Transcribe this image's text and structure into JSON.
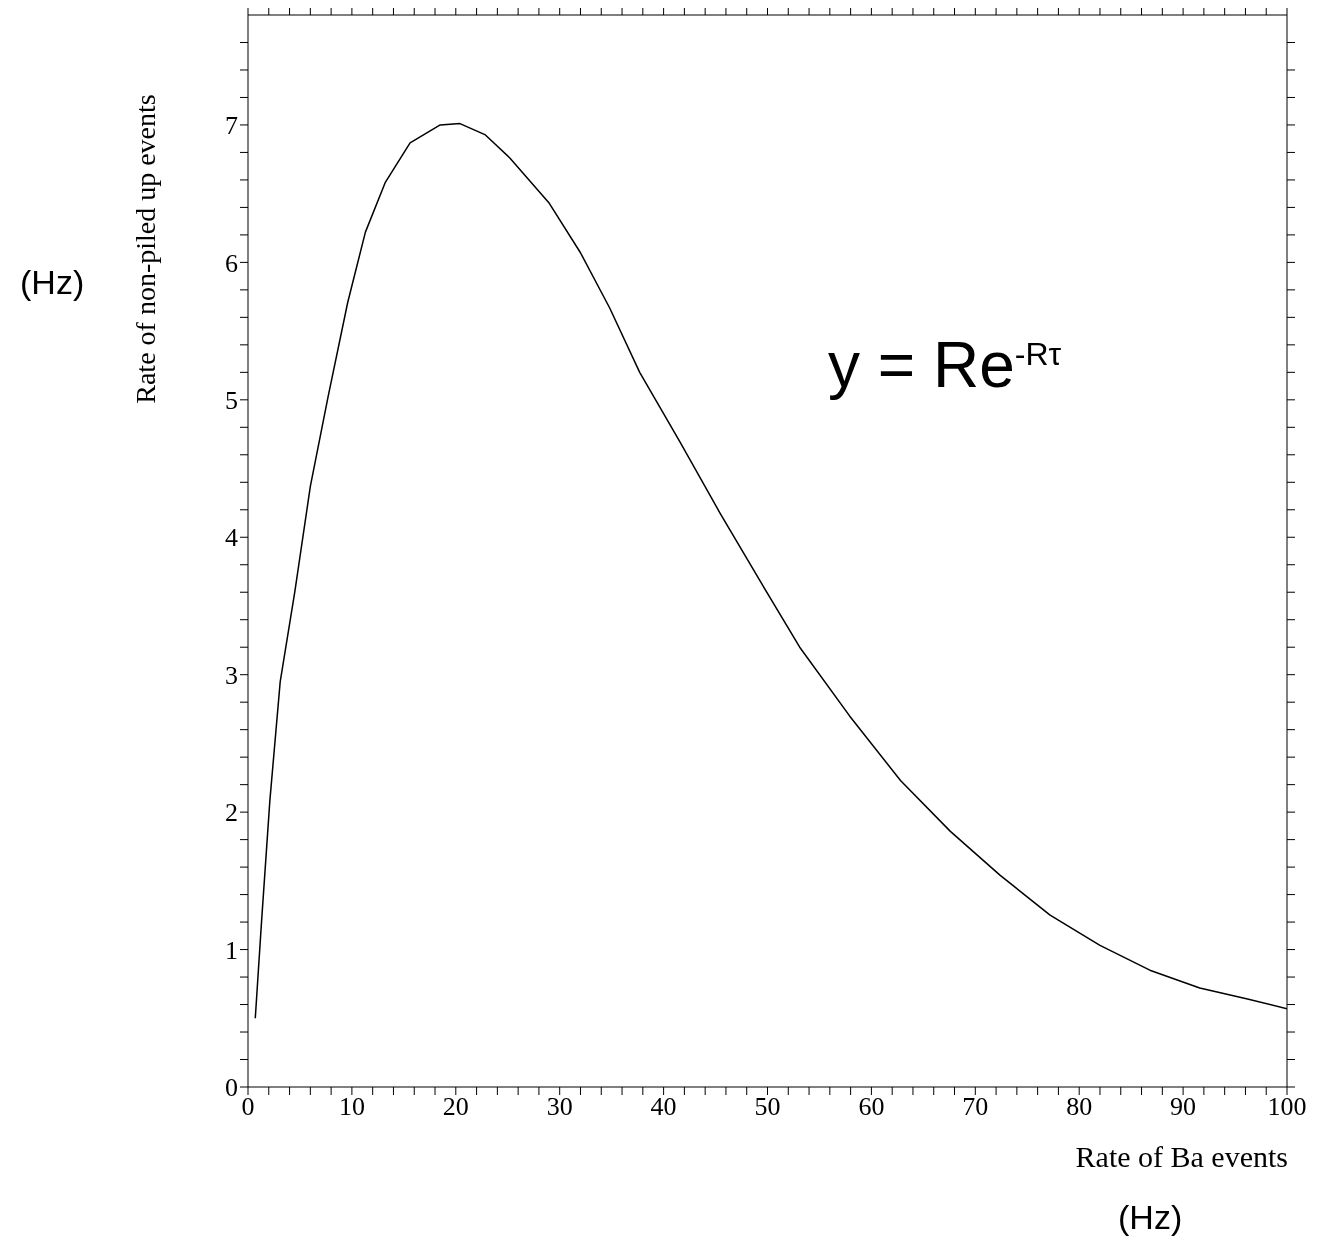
{
  "chart_data": {
    "type": "line",
    "xlabel": "Rate of Ba events",
    "ylabel": "Rate of non-piled up events",
    "annotations": [
      "(Hz)",
      "(Hz)",
      "y = Re$^{-Rτ}$"
    ],
    "x": [
      0.7,
      1.3,
      2.1,
      3.1,
      4.5,
      6,
      7.7,
      9.6,
      11.3,
      13.2,
      15.6,
      18.5,
      20.4,
      22.8,
      25.2,
      29,
      32,
      34.8,
      37.7,
      41.6,
      45.4,
      49.3,
      53.1,
      57.9,
      62.8,
      67.6,
      72.4,
      77.2,
      82,
      86.8,
      91.6,
      96.2,
      100
    ],
    "series": [
      {
        "color": "#000000",
        "values": [
          0.5,
          1.2,
          2.08,
          2.95,
          3.6,
          4.37,
          5.02,
          5.71,
          6.22,
          6.58,
          6.87,
          7.0,
          7.01,
          6.93,
          6.76,
          6.43,
          6.07,
          5.67,
          5.2,
          4.69,
          4.18,
          3.68,
          3.2,
          2.7,
          2.23,
          1.86,
          1.54,
          1.25,
          1.03,
          0.85,
          0.72,
          0.64,
          0.57
        ]
      }
    ],
    "xlim": [
      0,
      100
    ],
    "ylim": [
      0,
      7.8
    ],
    "xticks": [
      0,
      {
        "value": 2,
        "label": null
      },
      {
        "value": 4,
        "label": null
      },
      {
        "value": 6,
        "label": null
      },
      {
        "value": 8,
        "label": null
      },
      10,
      {
        "value": 12,
        "label": null
      },
      {
        "value": 14,
        "label": null
      },
      {
        "value": 16,
        "label": null
      },
      {
        "value": 18,
        "label": null
      },
      20,
      {
        "value": 22,
        "label": null
      },
      {
        "value": 24,
        "label": null
      },
      {
        "value": 26,
        "label": null
      },
      {
        "value": 28,
        "label": null
      },
      30,
      {
        "value": 32,
        "label": null
      },
      {
        "value": 34,
        "label": null
      },
      {
        "value": 36,
        "label": null
      },
      {
        "value": 38,
        "label": null
      },
      40,
      {
        "value": 42,
        "label": null
      },
      {
        "value": 44,
        "label": null
      },
      {
        "value": 46,
        "label": null
      },
      {
        "value": 48,
        "label": null
      },
      50,
      {
        "value": 52,
        "label": null
      },
      {
        "value": 54,
        "label": null
      },
      {
        "value": 56,
        "label": null
      },
      {
        "value": 58,
        "label": null
      },
      60,
      {
        "value": 62,
        "label": null
      },
      {
        "value": 64,
        "label": null
      },
      {
        "value": 66,
        "label": null
      },
      {
        "value": 68,
        "label": null
      },
      70,
      {
        "value": 72,
        "label": null
      },
      {
        "value": 74,
        "label": null
      },
      {
        "value": 76,
        "label": null
      },
      {
        "value": 78,
        "label": null
      },
      80,
      {
        "value": 82,
        "label": null
      },
      {
        "value": 84,
        "label": null
      },
      {
        "value": 86,
        "label": null
      },
      {
        "value": 88,
        "label": null
      },
      90,
      {
        "value": 92,
        "label": null
      },
      {
        "value": 94,
        "label": null
      },
      {
        "value": 96,
        "label": null
      },
      {
        "value": 98,
        "label": null
      },
      100
    ],
    "yticks": [
      0,
      {
        "value": 0.2,
        "label": null
      },
      {
        "value": 0.4,
        "label": null
      },
      {
        "value": 0.6,
        "label": null
      },
      {
        "value": 0.8,
        "label": null
      },
      1,
      {
        "value": 1.2,
        "label": null
      },
      {
        "value": 1.4,
        "label": null
      },
      {
        "value": 1.6,
        "label": null
      },
      {
        "value": 1.8,
        "label": null
      },
      2,
      {
        "value": 2.2,
        "label": null
      },
      {
        "value": 2.4,
        "label": null
      },
      {
        "value": 2.6,
        "label": null
      },
      {
        "value": 2.8,
        "label": null
      },
      3,
      {
        "value": 3.2,
        "label": null
      },
      {
        "value": 3.4,
        "label": null
      },
      {
        "value": 3.6,
        "label": null
      },
      {
        "value": 3.8,
        "label": null
      },
      4,
      {
        "value": 4.2,
        "label": null
      },
      {
        "value": 4.4,
        "label": null
      },
      {
        "value": 4.6,
        "label": null
      },
      {
        "value": 4.8,
        "label": null
      },
      5,
      {
        "value": 5.2,
        "label": null
      },
      {
        "value": 5.4,
        "label": null
      },
      {
        "value": 5.6,
        "label": null
      },
      {
        "value": 5.8,
        "label": null
      },
      6,
      {
        "value": 6.2,
        "label": null
      },
      {
        "value": 6.4,
        "label": null
      },
      {
        "value": 6.6,
        "label": null
      },
      {
        "value": 6.8,
        "label": null
      },
      7,
      {
        "value": 7.2,
        "label": null
      },
      {
        "value": 7.4,
        "label": null
      },
      {
        "value": 7.6,
        "label": null
      }
    ],
    "grid": false,
    "legend": false,
    "marker": "none",
    "line_style": "solid"
  }
}
